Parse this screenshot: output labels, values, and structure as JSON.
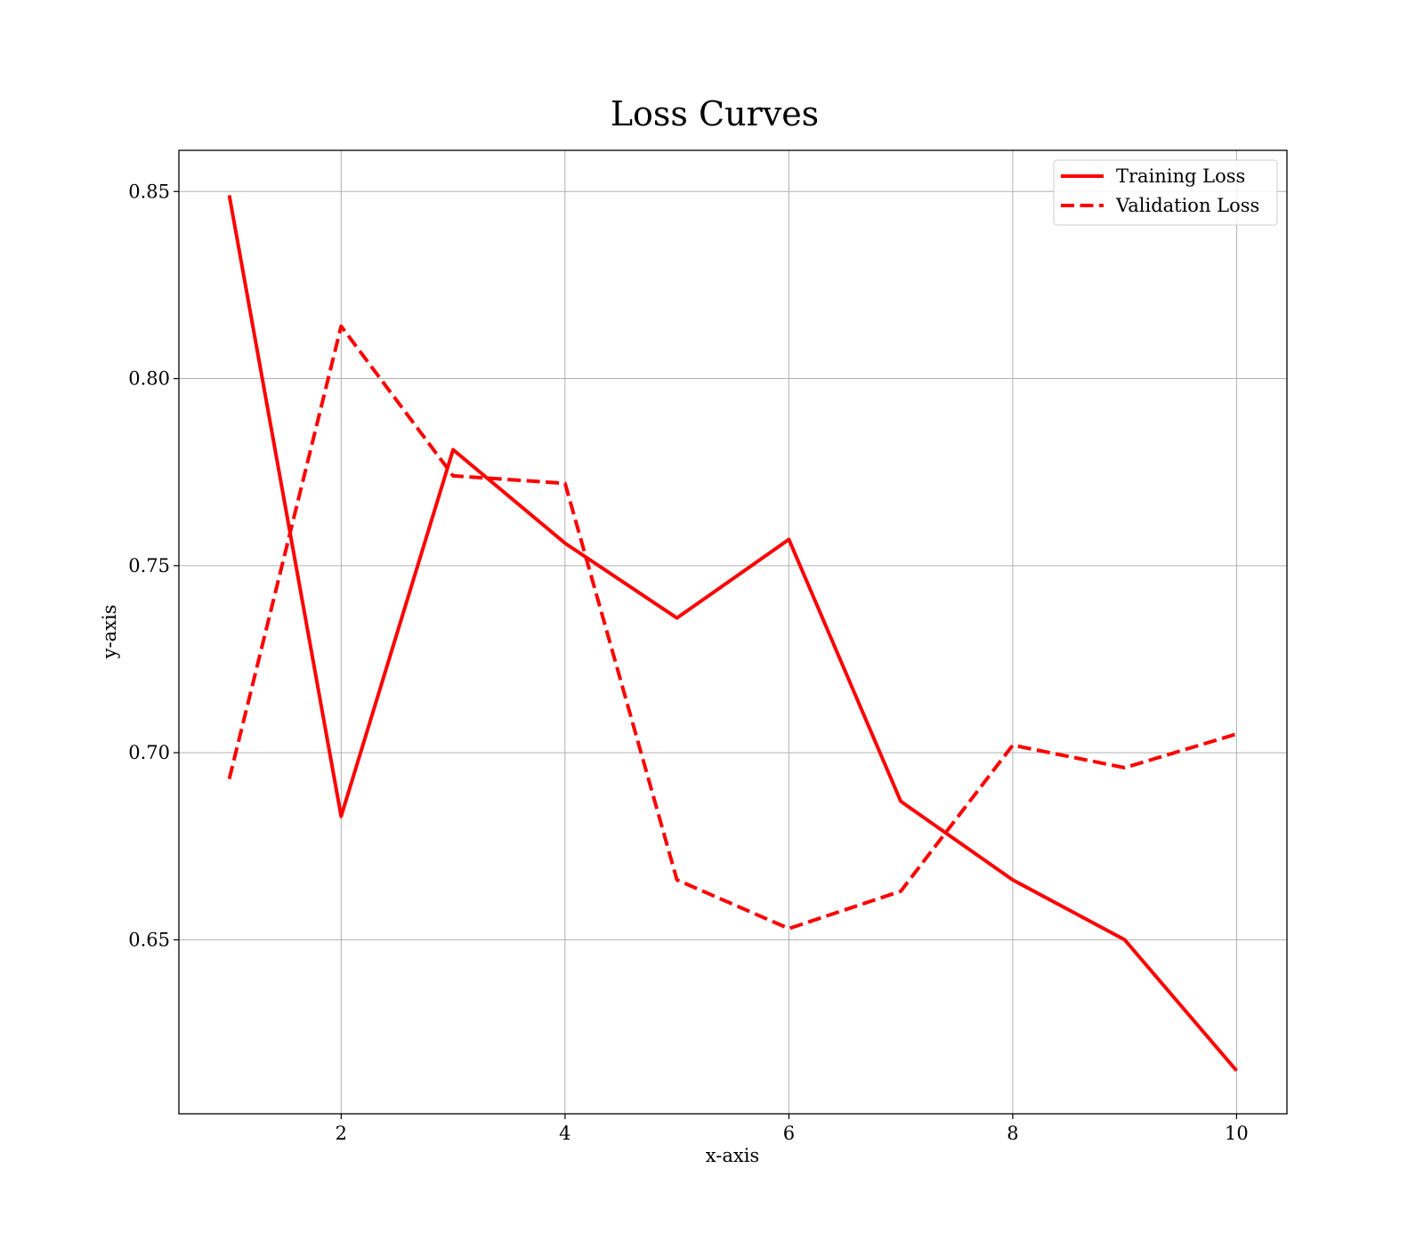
{
  "chart_data": {
    "type": "line",
    "title": "Loss Curves",
    "xlabel": "x-axis",
    "ylabel": "y-axis",
    "x": [
      1,
      2,
      3,
      4,
      5,
      6,
      7,
      8,
      9,
      10
    ],
    "xlim": [
      0.55,
      10.45
    ],
    "ylim": [
      0.6035,
      0.861
    ],
    "xticks": [
      2,
      4,
      6,
      8,
      10
    ],
    "xtick_labels": [
      "2",
      "4",
      "6",
      "8",
      "10"
    ],
    "yticks": [
      0.65,
      0.7,
      0.75,
      0.8,
      0.85
    ],
    "ytick_labels": [
      "0.65",
      "0.70",
      "0.75",
      "0.80",
      "0.85"
    ],
    "grid": true,
    "legend": "top-right",
    "series": [
      {
        "name": "Training Loss",
        "style": "solid",
        "color": "#ff0000",
        "values": [
          0.849,
          0.683,
          0.781,
          0.756,
          0.736,
          0.757,
          0.687,
          0.666,
          0.65,
          0.615
        ]
      },
      {
        "name": "Validation Loss",
        "style": "dashed",
        "color": "#ff0000",
        "values": [
          0.693,
          0.814,
          0.774,
          0.772,
          0.666,
          0.653,
          0.663,
          0.702,
          0.696,
          0.705
        ]
      }
    ]
  }
}
